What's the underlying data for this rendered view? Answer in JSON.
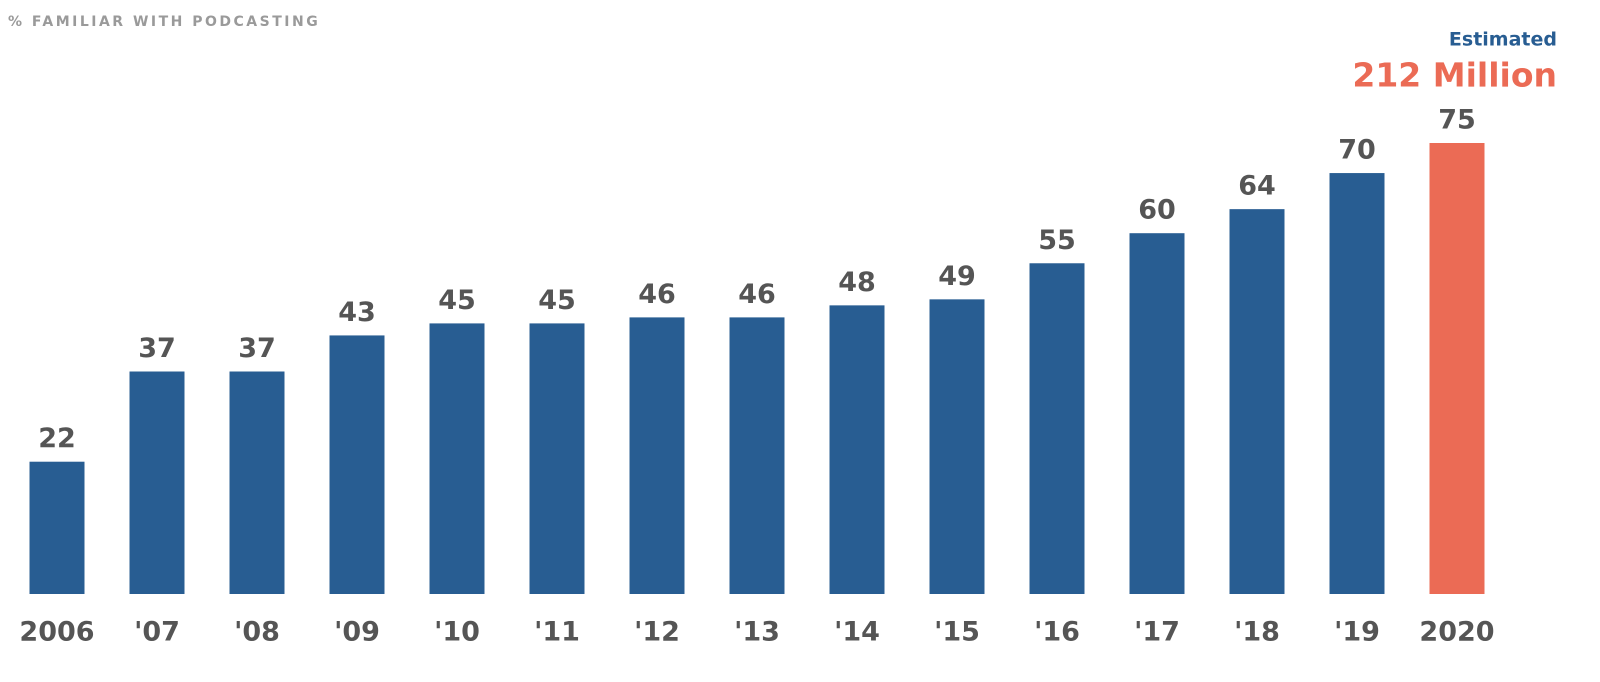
{
  "chart_data": {
    "type": "bar",
    "title": "% FAMILIAR WITH PODCASTING",
    "annotations": [
      "Estimated",
      "212 Million"
    ],
    "categories": [
      "2006",
      "'07",
      "'08",
      "'09",
      "'10",
      "'11",
      "'12",
      "'13",
      "'14",
      "'15",
      "'16",
      "'17",
      "'18",
      "'19",
      "2020"
    ],
    "values": [
      22,
      37,
      37,
      43,
      45,
      45,
      46,
      46,
      48,
      49,
      55,
      60,
      64,
      70,
      75
    ],
    "colors": [
      "#285d92",
      "#285d92",
      "#285d92",
      "#285d92",
      "#285d92",
      "#285d92",
      "#285d92",
      "#285d92",
      "#285d92",
      "#285d92",
      "#285d92",
      "#285d92",
      "#285d92",
      "#285d92",
      "#eb6b55"
    ],
    "ylim": [
      0,
      75
    ]
  }
}
